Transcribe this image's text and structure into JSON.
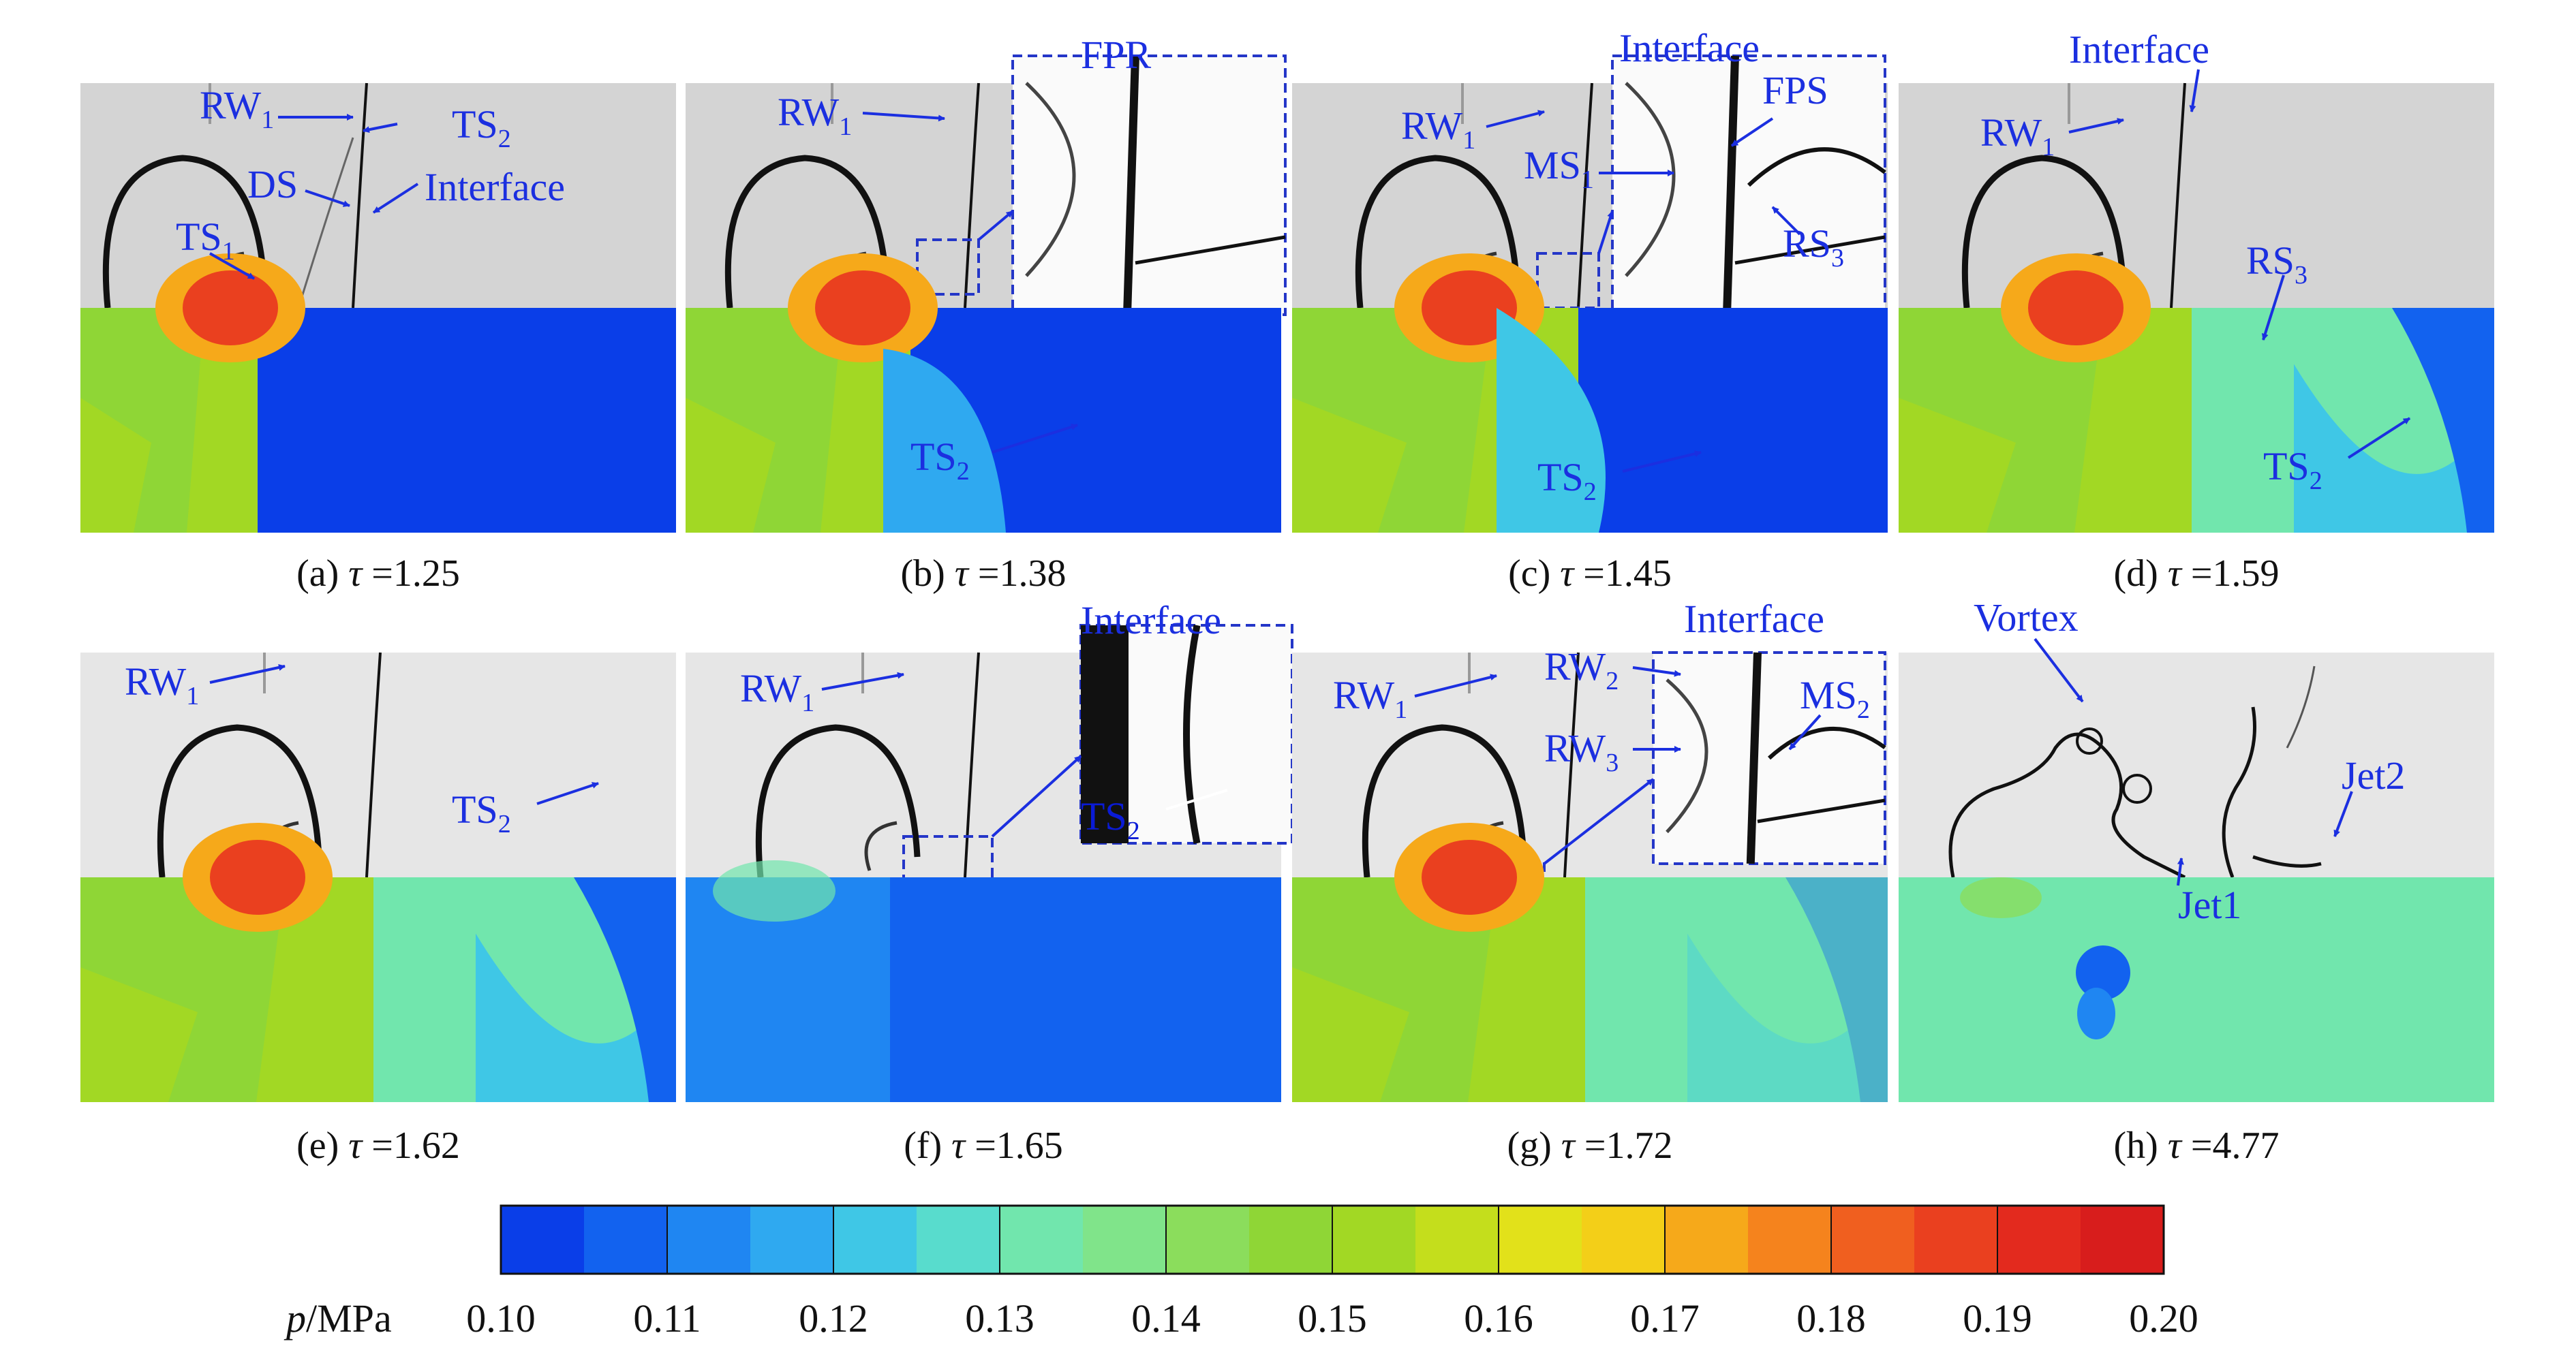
{
  "panels": [
    {
      "id": "a",
      "caption_prefix": "(a)",
      "tau_value": "1.25",
      "variant": "a",
      "labels": [
        {
          "t": "RW",
          "s": "1"
        },
        {
          "t": "TS",
          "s": "2"
        },
        {
          "t": "DS",
          "s": ""
        },
        {
          "t": "Interface",
          "s": ""
        },
        {
          "t": "TS",
          "s": "1"
        }
      ]
    },
    {
      "id": "b",
      "caption_prefix": "(b)",
      "tau_value": "1.38",
      "variant": "b",
      "labels": [
        {
          "t": "RW",
          "s": "1"
        },
        {
          "t": "FPR",
          "s": ""
        },
        {
          "t": "TS",
          "s": "2"
        }
      ]
    },
    {
      "id": "c",
      "caption_prefix": "(c)",
      "tau_value": "1.45",
      "variant": "c",
      "labels": [
        {
          "t": "RW",
          "s": "1"
        },
        {
          "t": "Interface",
          "s": ""
        },
        {
          "t": "FPS",
          "s": ""
        },
        {
          "t": "MS",
          "s": "1"
        },
        {
          "t": "RS",
          "s": "3"
        },
        {
          "t": "TS",
          "s": "2"
        }
      ]
    },
    {
      "id": "d",
      "caption_prefix": "(d)",
      "tau_value": "1.59",
      "variant": "d",
      "labels": [
        {
          "t": "Interface",
          "s": ""
        },
        {
          "t": "RW",
          "s": "1"
        },
        {
          "t": "RS",
          "s": "3"
        },
        {
          "t": "TS",
          "s": "2"
        }
      ]
    },
    {
      "id": "e",
      "caption_prefix": "(e)",
      "tau_value": "1.62",
      "variant": "e",
      "labels": [
        {
          "t": "RW",
          "s": "1"
        },
        {
          "t": "TS",
          "s": "2"
        }
      ]
    },
    {
      "id": "f",
      "caption_prefix": "(f)",
      "tau_value": "1.65",
      "variant": "f",
      "labels": [
        {
          "t": "RW",
          "s": "1"
        },
        {
          "t": "Interface",
          "s": ""
        },
        {
          "t": "TS",
          "s": "2"
        }
      ]
    },
    {
      "id": "g",
      "caption_prefix": "(g)",
      "tau_value": "1.72",
      "variant": "g",
      "labels": [
        {
          "t": "RW",
          "s": "1"
        },
        {
          "t": "Interface",
          "s": ""
        },
        {
          "t": "RW",
          "s": "2"
        },
        {
          "t": "RW",
          "s": "3"
        },
        {
          "t": "MS",
          "s": "2"
        }
      ]
    },
    {
      "id": "h",
      "caption_prefix": "(h)",
      "tau_value": "4.77",
      "variant": "h",
      "labels": [
        {
          "t": "Vortex",
          "s": ""
        },
        {
          "t": "Jet2",
          "s": ""
        },
        {
          "t": "Jet1",
          "s": ""
        }
      ]
    }
  ],
  "tau_symbol": "τ",
  "colorbar": {
    "label_var": "p",
    "label_unit": "/MPa",
    "ticks": [
      "0.10",
      "0.11",
      "0.12",
      "0.13",
      "0.14",
      "0.15",
      "0.16",
      "0.17",
      "0.18",
      "0.19",
      "0.20"
    ],
    "min": 0.1,
    "max": 0.2,
    "levels": 20,
    "colors": [
      "#0a3ee8",
      "#1262ef",
      "#1f86f2",
      "#2fa9f0",
      "#3fc7e6",
      "#58dccd",
      "#71e6ad",
      "#80e48a",
      "#8bdd5c",
      "#8fd636",
      "#a2d824",
      "#c4de1c",
      "#e2e11a",
      "#f3cf18",
      "#f6a91a",
      "#f5831d",
      "#f05f1f",
      "#ea401f",
      "#e32a1e",
      "#d81d1c"
    ]
  },
  "annotation_color": "#1b2fe0"
}
